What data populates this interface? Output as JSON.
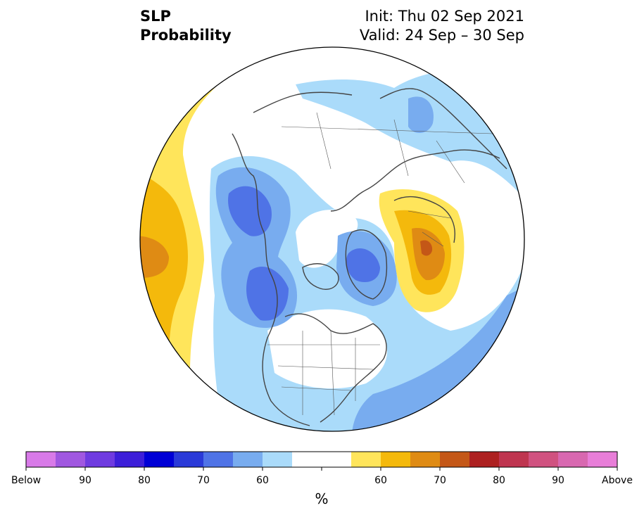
{
  "header": {
    "title_line1": "SLP",
    "title_line2": "Probability",
    "init": "Init: Thu 02 Sep 2021",
    "valid": "Valid: 24 Sep – 30 Sep"
  },
  "legend": {
    "unit": "%",
    "colors": [
      "#d87ae8",
      "#a057e0",
      "#6f3be0",
      "#3d1fd9",
      "#0000d6",
      "#2a3ad8",
      "#4f73e6",
      "#78acef",
      "#aadbfa",
      "#ffffff",
      "#ffffff",
      "#ffe55b",
      "#f4b90c",
      "#df8b14",
      "#c45717",
      "#ad2020",
      "#bf3550",
      "#d05280",
      "#d868b0",
      "#e87ed8"
    ],
    "tick_labels": [
      {
        "text": "Below",
        "index": 0
      },
      {
        "text": "90",
        "index": 2
      },
      {
        "text": "80",
        "index": 4
      },
      {
        "text": "70",
        "index": 6
      },
      {
        "text": "60",
        "index": 8
      },
      {
        "text": "60",
        "index": 12
      },
      {
        "text": "70",
        "index": 14
      },
      {
        "text": "80",
        "index": 16
      },
      {
        "text": "90",
        "index": 18
      },
      {
        "text": "Above",
        "index": 20
      }
    ]
  },
  "map": {
    "projection": "north-polar-stereographic",
    "colors": {
      "light_blue": "#aadbfa",
      "mid_blue": "#78acef",
      "blue": "#4f73e6",
      "light_yellow": "#ffe55b",
      "yellow": "#f4b90c",
      "orange": "#df8b14",
      "dark_orange": "#c45717",
      "coast": "#444444",
      "border": "#555555"
    }
  }
}
